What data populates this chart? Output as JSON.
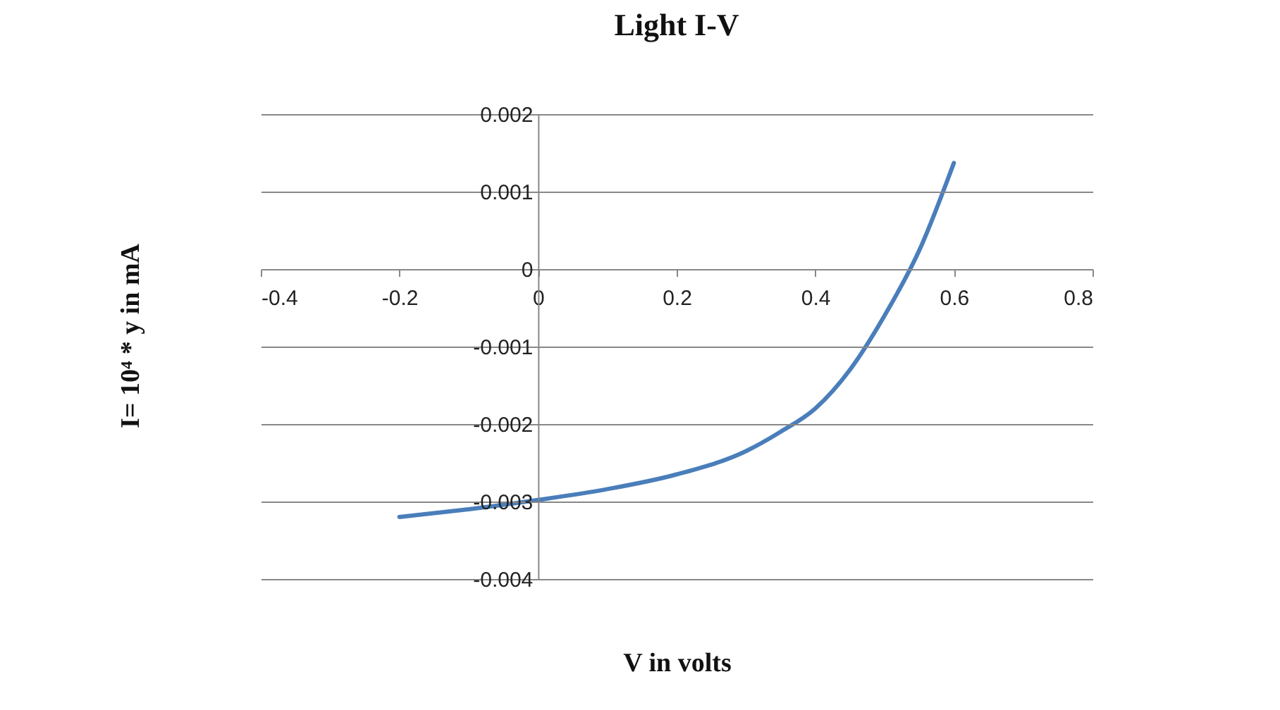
{
  "chart_data": {
    "type": "line",
    "title": "Light I-V",
    "xlabel": "V in volts",
    "ylabel": "I= 10⁴ * y  in mA",
    "x": [
      -0.2,
      -0.15,
      -0.1,
      0,
      0.1,
      0.2,
      0.3,
      0.35,
      0.4,
      0.45,
      0.5,
      0.55,
      0.6
    ],
    "series": [
      {
        "color": "#4a7ebb",
        "values": [
          -0.0032,
          -0.00315,
          -0.0031,
          -0.00298,
          -0.00284,
          -0.00265,
          -0.00235,
          -0.0021,
          -0.0018,
          -0.0013,
          -0.0006,
          0.00024,
          0.00137
        ]
      }
    ],
    "xlim": [
      -0.4,
      0.8
    ],
    "xticks": [
      -0.4,
      -0.2,
      0,
      0.2,
      0.4,
      0.6,
      0.8
    ],
    "ylim": [
      -0.004,
      0.002
    ],
    "yticks": [
      -0.004,
      -0.003,
      -0.002,
      -0.001,
      0,
      0.001,
      0.002
    ],
    "grid": "y",
    "marker": "none",
    "line_style": "solid"
  }
}
